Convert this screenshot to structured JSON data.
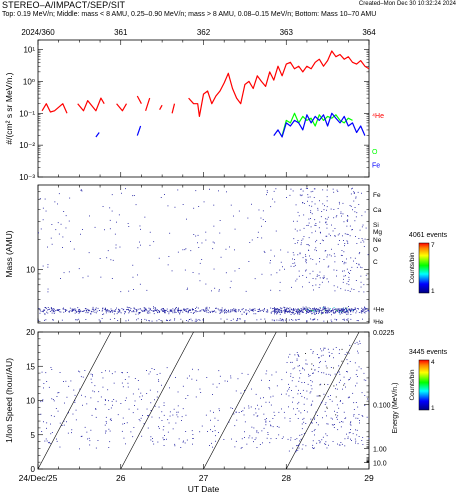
{
  "header": {
    "title": "STEREO–A/IMPACT/SEP/SIT",
    "created": "Created–Mon Dec 30 10:32:24 2024",
    "subtitle": "Top: 0.19 MeV/n; Middle: mass < 8 AMU, 0.25–0.90 MeV/n; mass > 8 AMU, 0.08–0.15 MeV/n; Bottom: Mass 10–70 AMU"
  },
  "colors": {
    "he": "#ff0000",
    "o": "#00ff00",
    "fe": "#0000ff",
    "points": "#1a1a9e"
  },
  "chart_data": [
    {
      "type": "line",
      "top_axis_ticks": [
        "2024/360",
        "361",
        "362",
        "363",
        "364"
      ],
      "ylabel": "#/(cm² s sr MeV/n.)",
      "ylog": true,
      "ylim": [
        0.001,
        20
      ],
      "yticks": [
        {
          "v": 0.001,
          "label": "10⁻³"
        },
        {
          "v": 0.01,
          "label": "10⁻²"
        },
        {
          "v": 0.1,
          "label": "10⁻¹"
        },
        {
          "v": 1,
          "label": "10⁰"
        },
        {
          "v": 10,
          "label": "10¹"
        }
      ],
      "xlim": [
        25,
        29
      ],
      "series": [
        {
          "name": "⁴He",
          "color": "#ff0000",
          "label_value": 0.09,
          "points": [
            [
              25.05,
              0.12
            ],
            [
              25.1,
              0.2
            ],
            [
              25.15,
              0.11
            ],
            [
              25.2,
              0.12
            ],
            [
              25.3,
              0.2
            ],
            [
              25.35,
              0.1
            ],
            [
              null,
              null
            ],
            [
              25.48,
              0.2
            ],
            [
              25.55,
              0.12
            ],
            [
              25.6,
              0.25
            ],
            [
              25.7,
              0.12
            ],
            [
              25.76,
              0.3
            ],
            [
              25.8,
              0.2
            ],
            [
              null,
              null
            ],
            [
              25.95,
              0.2
            ],
            [
              26.02,
              0.12
            ],
            [
              26.07,
              0.2
            ],
            [
              null,
              null
            ],
            [
              26.2,
              0.35
            ],
            [
              26.25,
              0.2
            ],
            [
              null,
              null
            ],
            [
              26.3,
              0.12
            ],
            [
              26.35,
              0.3
            ],
            [
              null,
              null
            ],
            [
              26.47,
              0.13
            ],
            [
              26.5,
              0.18
            ],
            [
              null,
              null
            ],
            [
              26.62,
              0.1
            ],
            [
              26.65,
              0.2
            ],
            [
              null,
              null
            ],
            [
              26.82,
              0.3
            ],
            [
              26.88,
              0.2
            ],
            [
              26.93,
              0.2
            ],
            [
              26.95,
              0.08
            ],
            [
              27.0,
              0.4
            ],
            [
              27.05,
              0.5
            ],
            [
              27.1,
              0.2
            ],
            [
              27.15,
              0.35
            ],
            [
              27.2,
              0.5
            ],
            [
              27.25,
              0.9
            ],
            [
              27.3,
              1.8
            ],
            [
              27.35,
              0.6
            ],
            [
              27.4,
              0.3
            ],
            [
              27.45,
              0.2
            ],
            [
              27.5,
              0.8
            ],
            [
              27.55,
              1.0
            ],
            [
              27.6,
              0.6
            ],
            [
              27.65,
              1.5
            ],
            [
              27.7,
              1.0
            ],
            [
              27.75,
              0.7
            ],
            [
              27.8,
              2.0
            ],
            [
              27.85,
              1.1
            ],
            [
              27.9,
              3.0
            ],
            [
              27.95,
              1.5
            ],
            [
              28.0,
              3.5
            ],
            [
              28.05,
              4.0
            ],
            [
              28.1,
              2.5
            ],
            [
              28.15,
              3.0
            ],
            [
              28.2,
              2.0
            ],
            [
              28.25,
              3.0
            ],
            [
              28.3,
              2.5
            ],
            [
              28.35,
              4.0
            ],
            [
              28.4,
              5.0
            ],
            [
              28.45,
              3.0
            ],
            [
              28.5,
              4.5
            ],
            [
              28.55,
              9.0
            ],
            [
              28.6,
              6.0
            ],
            [
              28.65,
              7.0
            ],
            [
              28.7,
              5.0
            ],
            [
              28.75,
              6.0
            ],
            [
              28.8,
              4.0
            ],
            [
              28.85,
              3.5
            ],
            [
              28.9,
              4.5
            ],
            [
              28.95,
              3.0
            ],
            [
              29.0,
              2.5
            ]
          ]
        },
        {
          "name": "O",
          "color": "#00ff00",
          "label_value": 0.0065,
          "points": [
            [
              27.95,
              0.02
            ],
            [
              28.0,
              0.06
            ],
            [
              28.05,
              0.05
            ],
            [
              28.1,
              0.1
            ],
            [
              28.15,
              0.05
            ],
            [
              28.2,
              0.08
            ],
            [
              28.25,
              0.06
            ],
            [
              28.3,
              0.07
            ],
            [
              28.35,
              0.04
            ],
            [
              28.4,
              0.09
            ],
            [
              28.45,
              0.06
            ],
            [
              28.5,
              0.08
            ],
            [
              28.55,
              0.07
            ],
            [
              28.6,
              0.09
            ],
            [
              28.65,
              0.06
            ],
            [
              28.7,
              0.05
            ],
            [
              28.75,
              0.07
            ],
            [
              28.8,
              0.06
            ]
          ]
        },
        {
          "name": "Fe",
          "color": "#0000ff",
          "label_value": 0.0025,
          "points": [
            [
              25.7,
              0.018
            ],
            [
              25.74,
              0.025
            ],
            [
              null,
              null
            ],
            [
              26.2,
              0.02
            ],
            [
              26.24,
              0.04
            ],
            [
              null,
              null
            ],
            [
              27.85,
              0.02
            ],
            [
              27.9,
              0.03
            ],
            [
              27.95,
              0.018
            ],
            [
              28.0,
              0.05
            ],
            [
              28.05,
              0.04
            ],
            [
              28.1,
              0.06
            ],
            [
              28.15,
              0.05
            ],
            [
              28.2,
              0.03
            ],
            [
              28.25,
              0.09
            ],
            [
              28.3,
              0.05
            ],
            [
              28.35,
              0.08
            ],
            [
              28.4,
              0.06
            ],
            [
              28.45,
              0.09
            ],
            [
              28.5,
              0.04
            ],
            [
              28.55,
              0.1
            ],
            [
              28.6,
              0.07
            ],
            [
              28.65,
              0.05
            ],
            [
              28.7,
              0.08
            ],
            [
              28.75,
              0.04
            ],
            [
              28.8,
              0.05
            ],
            [
              28.85,
              0.025
            ],
            [
              28.9,
              0.04
            ],
            [
              28.95,
              0.02
            ]
          ]
        }
      ]
    },
    {
      "type": "scatter",
      "ylabel": "Mass (AMU)",
      "ylog": true,
      "ylim": [
        2.9,
        70
      ],
      "yticks": [
        {
          "v": 10,
          "label": "10"
        }
      ],
      "xlim": [
        25,
        29
      ],
      "species": [
        {
          "label": "Fe",
          "v": 56
        },
        {
          "label": "Ca",
          "v": 40
        },
        {
          "label": "Si",
          "v": 28
        },
        {
          "label": "Mg",
          "v": 24
        },
        {
          "label": "Ne",
          "v": 20
        },
        {
          "label": "O",
          "v": 16
        },
        {
          "label": "C",
          "v": 12
        },
        {
          "label": "⁴He",
          "v": 4
        },
        {
          "label": "³He",
          "v": 3
        }
      ],
      "colorbar": {
        "events": "4061 events",
        "title": "Counts/bin",
        "max": "7",
        "min": "1"
      }
    },
    {
      "type": "scatter",
      "ylabel": "1/Ion Speed (hour/AU)",
      "xlabel": "UT Date",
      "ylim": [
        0,
        20
      ],
      "yticks": [
        0,
        5,
        10,
        15,
        20
      ],
      "xlim": [
        25,
        29
      ],
      "xticks": [
        {
          "v": 25,
          "label": "24/Dec/25"
        },
        {
          "v": 26,
          "label": "26"
        },
        {
          "v": 27,
          "label": "27"
        },
        {
          "v": 28,
          "label": "28"
        },
        {
          "v": 29,
          "label": "29"
        }
      ],
      "energy_axis": {
        "label": "Energy (MeV/n.)",
        "ticks": [
          {
            "v": 0.0225,
            "label": "0.0225",
            "y": 20
          },
          {
            "v": 0.1,
            "label": "0.100",
            "y": 9.4
          },
          {
            "v": 1.0,
            "label": "1.00",
            "y": 2.97
          },
          {
            "v": 10.0,
            "label": "10.0",
            "y": 0.94
          }
        ]
      },
      "colorbar": {
        "events": "3445 events",
        "title": "Counts/bin",
        "max": "4",
        "min": "1"
      }
    }
  ]
}
